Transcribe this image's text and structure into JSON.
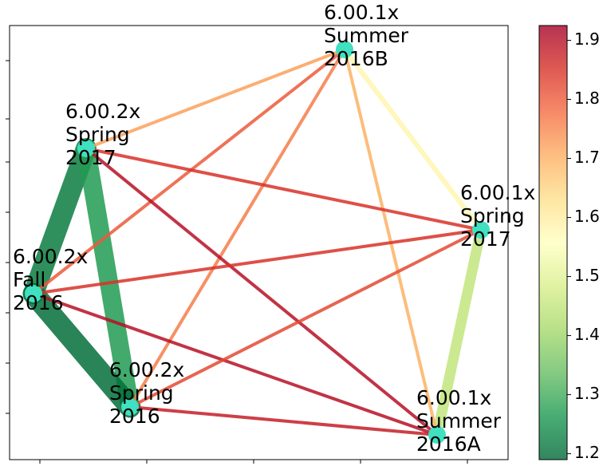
{
  "chart_data": {
    "type": "network",
    "nodes": [
      [
        "6.00.1x",
        "Summer",
        "2016B"
      ],
      [
        "6.00.2x",
        "Spring",
        "2017"
      ],
      [
        "6.00.1x",
        "Spring",
        "2017"
      ],
      [
        "6.00.2x",
        "Fall",
        "2016"
      ],
      [
        "6.00.2x",
        "Spring",
        "2016"
      ],
      [
        "6.00.1x",
        "Summer",
        "2016A"
      ]
    ],
    "edges": [
      {
        "source": 1,
        "target": 3,
        "value": 1.22
      },
      {
        "source": 1,
        "target": 4,
        "value": 1.27
      },
      {
        "source": 3,
        "target": 4,
        "value": 1.2
      },
      {
        "source": 0,
        "target": 2,
        "value": 1.58
      },
      {
        "source": 2,
        "target": 5,
        "value": 1.45
      },
      {
        "source": 0,
        "target": 1,
        "value": 1.72
      },
      {
        "source": 0,
        "target": 3,
        "value": 1.8
      },
      {
        "source": 0,
        "target": 4,
        "value": 1.76
      },
      {
        "source": 0,
        "target": 5,
        "value": 1.7
      },
      {
        "source": 1,
        "target": 2,
        "value": 1.85
      },
      {
        "source": 1,
        "target": 5,
        "value": 1.9
      },
      {
        "source": 3,
        "target": 2,
        "value": 1.85
      },
      {
        "source": 3,
        "target": 5,
        "value": 1.9
      },
      {
        "source": 4,
        "target": 2,
        "value": 1.82
      },
      {
        "source": 4,
        "target": 5,
        "value": 1.88
      }
    ],
    "colormap": "RdYlGn_r",
    "node_color": "#40e0c0",
    "colorbar_lim": [
      1.19,
      1.925
    ],
    "colorbar_ticks": [
      1.2,
      1.3,
      1.4,
      1.5,
      1.6,
      1.7,
      1.8,
      1.9
    ]
  }
}
